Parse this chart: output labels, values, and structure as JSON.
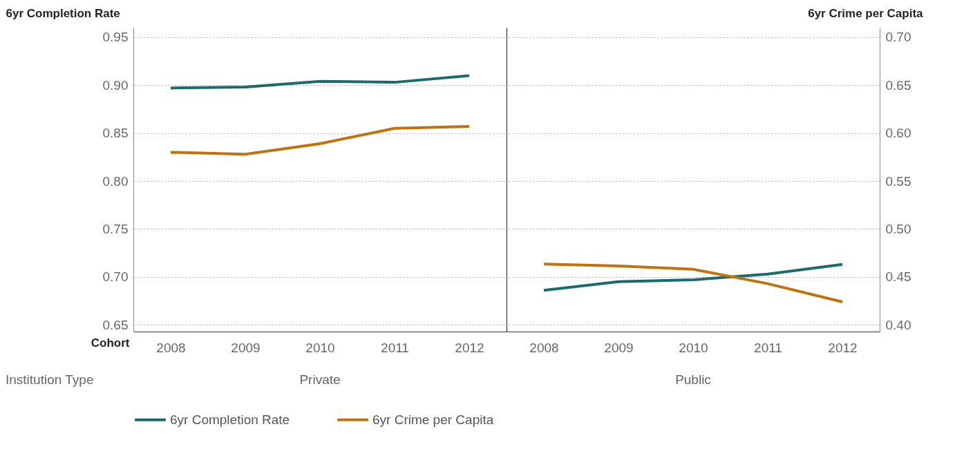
{
  "chart_data": [
    {
      "type": "line",
      "title": "Private",
      "xlabel": "Cohort",
      "ylabel": "6yr Completion Rate",
      "annotations": [
        "Institution Type"
      ],
      "categories": [
        "2008",
        "2009",
        "2010",
        "2011",
        "2012"
      ],
      "series": [
        {
          "name": "6yr Completion Rate",
          "color": "#1a6b6e",
          "values": [
            0.897,
            0.898,
            0.904,
            0.903,
            0.91
          ]
        },
        {
          "name": "6yr Crime per Capita",
          "color": "#c0720f",
          "axis": "y2",
          "values": [
            0.58,
            0.578,
            0.589,
            0.605,
            0.607
          ]
        }
      ],
      "ylim": [
        0.643,
        0.96
      ],
      "yticks": [
        {
          "value": 0.65,
          "label": "0.65"
        },
        {
          "value": 0.7,
          "label": "0.70"
        },
        {
          "value": 0.75,
          "label": "0.75"
        },
        {
          "value": 0.8,
          "label": "0.80"
        },
        {
          "value": 0.85,
          "label": "0.85"
        },
        {
          "value": 0.9,
          "label": "0.90"
        },
        {
          "value": 0.95,
          "label": "0.95"
        }
      ],
      "y2lim": [
        0.393,
        0.71
      ],
      "grid": "y",
      "legend": "bottom"
    },
    {
      "type": "line",
      "title": "Public",
      "y2label": "6yr Crime per Capita",
      "categories": [
        "2008",
        "2009",
        "2010",
        "2011",
        "2012"
      ],
      "series": [
        {
          "color": "#1a6b6e",
          "values": [
            0.686,
            0.695,
            0.697,
            0.703,
            0.713
          ]
        },
        {
          "color": "#c0720f",
          "axis": "y2",
          "values": [
            0.4635,
            0.4615,
            0.458,
            0.443,
            0.424
          ]
        }
      ],
      "ylim": [
        0.643,
        0.96
      ],
      "y2lim": [
        0.393,
        0.71
      ],
      "y2ticks": [
        {
          "value": 0.4,
          "label": "0.40"
        },
        {
          "value": 0.45,
          "label": "0.45"
        },
        {
          "value": 0.5,
          "label": "0.50"
        },
        {
          "value": 0.55,
          "label": "0.55"
        },
        {
          "value": 0.6,
          "label": "0.60"
        },
        {
          "value": 0.65,
          "label": "0.65"
        },
        {
          "value": 0.7,
          "label": "0.70"
        }
      ],
      "grid": "y2"
    }
  ]
}
